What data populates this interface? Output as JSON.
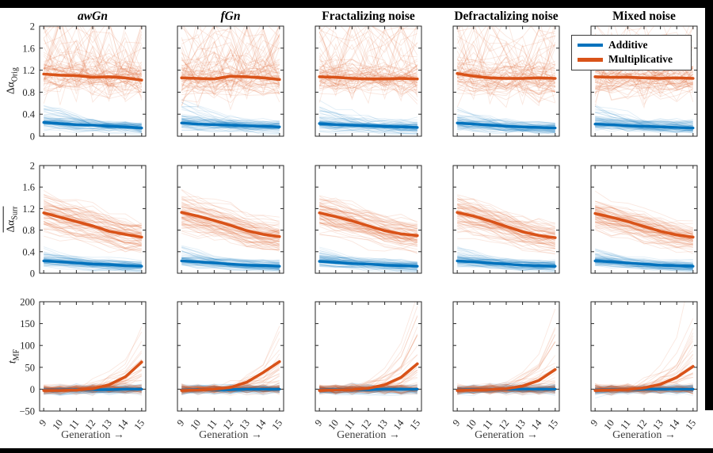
{
  "figure": {
    "background_color": "#000000",
    "canvas_color": "#ffffff",
    "axis_color": "#262626"
  },
  "chart_data": {
    "type": "line",
    "title": "",
    "columns": [
      "awGn",
      "fGn",
      "Fractalizing noise",
      "Defractalizing noise",
      "Mixed noise"
    ],
    "x": [
      9,
      10,
      11,
      12,
      13,
      14,
      15
    ],
    "x_tick_labels": [
      "9",
      "10",
      "11",
      "12",
      "13",
      "14",
      "15"
    ],
    "xlim": [
      8.75,
      15.25
    ],
    "xlabel": "Generation →",
    "grid": false,
    "legend": {
      "position": "top-right",
      "entries": [
        {
          "label": "Additive",
          "color": "#0072BD"
        },
        {
          "label": "Multiplicative",
          "color": "#D95319"
        }
      ]
    },
    "series_colors": {
      "additive": "#0072BD",
      "multiplicative": "#D95319"
    },
    "rows": [
      {
        "ylabel": {
          "main": "Δα",
          "sub": "Orig",
          "overline": false,
          "italic": false
        },
        "ylim": [
          0,
          2
        ],
        "yticks": [
          0,
          0.4,
          0.8,
          1.2,
          1.6,
          2
        ],
        "ytick_labels": [
          "0",
          "0.4",
          "0.8",
          "1.2",
          "1.6",
          "2"
        ]
      },
      {
        "ylabel": {
          "main": "Δα",
          "sub": "Surr",
          "overline": true,
          "italic": false
        },
        "ylim": [
          0,
          2
        ],
        "yticks": [
          0,
          0.4,
          0.8,
          1.2,
          1.6,
          2
        ],
        "ytick_labels": [
          "0",
          "0.4",
          "0.8",
          "1.2",
          "1.6",
          "2"
        ]
      },
      {
        "ylabel": {
          "main": "t",
          "sub": "MF",
          "overline": false,
          "italic": true
        },
        "ylim": [
          -50,
          200
        ],
        "yticks": [
          -50,
          0,
          50,
          100,
          150,
          200
        ],
        "ytick_labels": [
          "−50",
          "0",
          "50",
          "100",
          "150",
          "200"
        ]
      }
    ],
    "means": [
      [
        {
          "additive": [
            0.25,
            0.23,
            0.21,
            0.2,
            0.18,
            0.17,
            0.15
          ],
          "multiplicative": [
            1.13,
            1.11,
            1.1,
            1.07,
            1.08,
            1.06,
            1.02
          ]
        },
        {
          "additive": [
            0.24,
            0.22,
            0.21,
            0.2,
            0.19,
            0.18,
            0.17
          ],
          "multiplicative": [
            1.06,
            1.05,
            1.04,
            1.09,
            1.08,
            1.06,
            1.03
          ]
        },
        {
          "additive": [
            0.23,
            0.21,
            0.2,
            0.19,
            0.18,
            0.17,
            0.16
          ],
          "multiplicative": [
            1.08,
            1.07,
            1.05,
            1.04,
            1.04,
            1.05,
            1.04
          ]
        },
        {
          "additive": [
            0.24,
            0.22,
            0.2,
            0.18,
            0.17,
            0.16,
            0.15
          ],
          "multiplicative": [
            1.14,
            1.09,
            1.06,
            1.05,
            1.05,
            1.06,
            1.05
          ]
        },
        {
          "additive": [
            0.22,
            0.21,
            0.19,
            0.18,
            0.17,
            0.16,
            0.15
          ],
          "multiplicative": [
            1.08,
            1.07,
            1.07,
            1.06,
            1.05,
            1.06,
            1.05
          ]
        }
      ],
      [
        {
          "additive": [
            0.23,
            0.21,
            0.19,
            0.17,
            0.16,
            0.14,
            0.13
          ],
          "multiplicative": [
            1.12,
            1.04,
            0.96,
            0.88,
            0.78,
            0.72,
            0.67
          ]
        },
        {
          "additive": [
            0.23,
            0.21,
            0.19,
            0.17,
            0.15,
            0.14,
            0.13
          ],
          "multiplicative": [
            1.13,
            1.06,
            0.98,
            0.89,
            0.79,
            0.72,
            0.68
          ]
        },
        {
          "additive": [
            0.22,
            0.2,
            0.18,
            0.17,
            0.15,
            0.14,
            0.13
          ],
          "multiplicative": [
            1.12,
            1.05,
            0.97,
            0.88,
            0.79,
            0.73,
            0.7
          ]
        },
        {
          "additive": [
            0.23,
            0.21,
            0.19,
            0.17,
            0.15,
            0.14,
            0.13
          ],
          "multiplicative": [
            1.13,
            1.06,
            0.97,
            0.87,
            0.77,
            0.7,
            0.66
          ]
        },
        {
          "additive": [
            0.23,
            0.21,
            0.19,
            0.17,
            0.15,
            0.14,
            0.13
          ],
          "multiplicative": [
            1.11,
            1.04,
            0.96,
            0.87,
            0.78,
            0.71,
            0.67
          ]
        }
      ],
      [
        {
          "additive": [
            -2,
            -2,
            -1,
            -1,
            -1,
            0,
            0
          ],
          "multiplicative": [
            -3,
            -3,
            -2,
            1,
            10,
            28,
            62
          ]
        },
        {
          "additive": [
            -2,
            -1,
            -1,
            -1,
            0,
            0,
            0
          ],
          "multiplicative": [
            -3,
            -2,
            0,
            4,
            16,
            38,
            63
          ]
        },
        {
          "additive": [
            -2,
            -1,
            -1,
            -1,
            0,
            0,
            0
          ],
          "multiplicative": [
            -3,
            -2,
            -1,
            2,
            10,
            27,
            58
          ]
        },
        {
          "additive": [
            -2,
            -1,
            -1,
            0,
            0,
            0,
            0
          ],
          "multiplicative": [
            -3,
            -2,
            -1,
            1,
            7,
            20,
            45
          ]
        },
        {
          "additive": [
            -2,
            -1,
            -1,
            0,
            0,
            0,
            0
          ],
          "multiplicative": [
            -3,
            -2,
            -1,
            3,
            11,
            27,
            52
          ]
        }
      ]
    ]
  }
}
